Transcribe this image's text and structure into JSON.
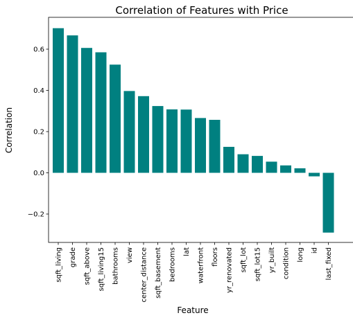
{
  "chart_data": {
    "type": "bar",
    "title": "Correlation of Features with Price",
    "xlabel": "Feature",
    "ylabel": "Correlation",
    "categories": [
      "sqft_living",
      "grade",
      "sqft_above",
      "sqft_living15",
      "bathrooms",
      "view",
      "center_distance",
      "sqft_basement",
      "bedrooms",
      "lat",
      "waterfront",
      "floors",
      "yr_renovated",
      "sqft_lot",
      "sqft_lot15",
      "yr_built",
      "condition",
      "long",
      "id",
      "last_fixed"
    ],
    "values": [
      0.702,
      0.667,
      0.606,
      0.585,
      0.525,
      0.397,
      0.372,
      0.324,
      0.308,
      0.307,
      0.266,
      0.257,
      0.126,
      0.09,
      0.082,
      0.054,
      0.036,
      0.022,
      -0.017,
      -0.29
    ],
    "yticks": [
      -0.2,
      0.0,
      0.2,
      0.4,
      0.6
    ],
    "ytick_labels": [
      "−0.2",
      "0.0",
      "0.2",
      "0.4",
      "0.6"
    ],
    "ylim": [
      -0.35,
      0.75
    ],
    "bar_color": "#008080",
    "grid": false,
    "legend": "none"
  }
}
